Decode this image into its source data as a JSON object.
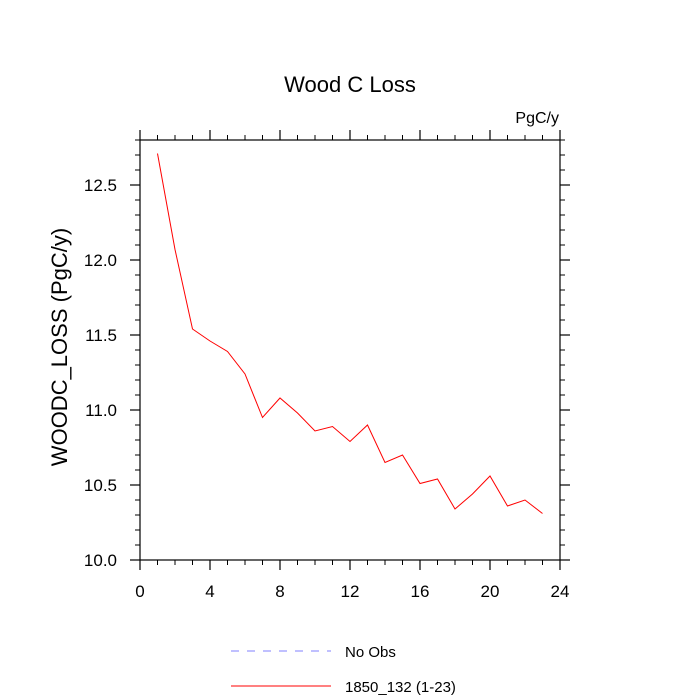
{
  "chart_data": {
    "type": "line",
    "title": "Wood C Loss",
    "units": "PgC/y",
    "xlabel": "",
    "ylabel": "WOODC_LOSS  (PgC/y)",
    "xlim": [
      0,
      24
    ],
    "ylim": [
      10.0,
      12.8
    ],
    "xticks": [
      0,
      4,
      8,
      12,
      16,
      20,
      24
    ],
    "xtick_labels": [
      "0",
      "4",
      "8",
      "12",
      "16",
      "20",
      "24"
    ],
    "yticks": [
      10.0,
      10.5,
      11.0,
      11.5,
      12.0,
      12.5
    ],
    "ytick_labels": [
      "10.0",
      "10.5",
      "11.0",
      "11.5",
      "12.0",
      "12.5"
    ],
    "x_minor_step": 1,
    "y_minor_step": 0.1,
    "grid": false,
    "legend_position": "bottom-center",
    "series": [
      {
        "name": "No Obs",
        "color": "#8080ff",
        "dash": "dashed",
        "x": [],
        "values": []
      },
      {
        "name": "1850_132 (1-23)",
        "color": "#ff0000",
        "dash": "solid",
        "x": [
          1,
          2,
          3,
          4,
          5,
          6,
          7,
          8,
          9,
          10,
          11,
          12,
          13,
          14,
          15,
          16,
          17,
          18,
          19,
          20,
          21,
          22,
          23
        ],
        "values": [
          12.71,
          12.07,
          11.54,
          11.46,
          11.39,
          11.24,
          10.95,
          11.08,
          10.98,
          10.86,
          10.89,
          10.79,
          10.9,
          10.65,
          10.7,
          10.51,
          10.54,
          10.34,
          10.44,
          10.56,
          10.36,
          10.4,
          10.31
        ]
      }
    ]
  }
}
